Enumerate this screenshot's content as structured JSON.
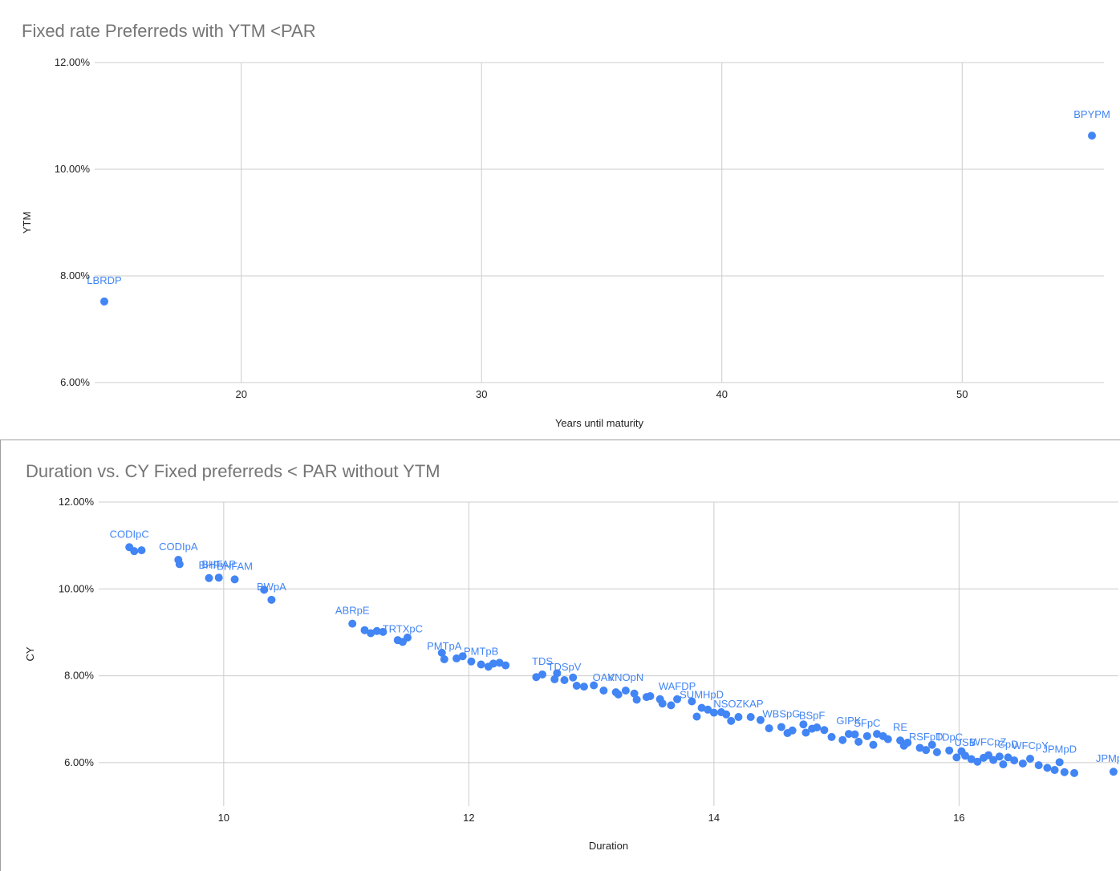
{
  "chart_data": [
    {
      "type": "scatter",
      "title": "Fixed rate Preferreds with YTM <PAR",
      "xlabel": "Years until maturity",
      "ylabel": "YTM",
      "xlim": [
        13.9,
        55.9
      ],
      "ylim": [
        0.06,
        0.12
      ],
      "x_ticks": [
        20,
        30,
        40,
        50
      ],
      "x_tick_labels": [
        "20",
        "30",
        "40",
        "50"
      ],
      "y_ticks": [
        0.06,
        0.08,
        0.1,
        0.12
      ],
      "y_tick_labels": [
        "6.00%",
        "8.00%",
        "10.00%",
        "12.00%"
      ],
      "grid": true,
      "color": "#4285f4",
      "points": [
        {
          "x": 14.3,
          "y": 0.0752,
          "label": "LBRDP"
        },
        {
          "x": 55.4,
          "y": 0.1063,
          "label": "BPYPM"
        }
      ]
    },
    {
      "type": "scatter",
      "title": "Duration vs. CY Fixed preferreds < PAR without YTM",
      "xlabel": "Duration",
      "ylabel": "CY",
      "xlim": [
        8.98,
        17.3
      ],
      "ylim": [
        0.05,
        0.12
      ],
      "x_ticks": [
        10,
        12,
        14,
        16
      ],
      "x_tick_labels": [
        "10",
        "12",
        "14",
        "16"
      ],
      "y_ticks": [
        0.06,
        0.08,
        0.1,
        0.12
      ],
      "y_tick_labels": [
        "6.00%",
        "8.00%",
        "10.00%",
        "12.00%"
      ],
      "grid": true,
      "color": "#4285f4",
      "points": [
        {
          "x": 9.23,
          "y": 0.1096,
          "label": "CODIpC"
        },
        {
          "x": 9.27,
          "y": 0.1087,
          "label": ""
        },
        {
          "x": 9.33,
          "y": 0.1089,
          "label": ""
        },
        {
          "x": 9.63,
          "y": 0.1067,
          "label": "CODIpA"
        },
        {
          "x": 9.64,
          "y": 0.1057,
          "label": ""
        },
        {
          "x": 9.88,
          "y": 0.1025,
          "label": "BHF"
        },
        {
          "x": 9.96,
          "y": 0.1026,
          "label": "BHFAP"
        },
        {
          "x": 10.09,
          "y": 0.1022,
          "label": "BHFAM"
        },
        {
          "x": 10.33,
          "y": 0.0998,
          "label": ""
        },
        {
          "x": 10.39,
          "y": 0.0975,
          "label": "BWpA"
        },
        {
          "x": 11.05,
          "y": 0.092,
          "label": "ABRpE"
        },
        {
          "x": 11.15,
          "y": 0.0905,
          "label": ""
        },
        {
          "x": 11.2,
          "y": 0.0898,
          "label": ""
        },
        {
          "x": 11.25,
          "y": 0.0903,
          "label": ""
        },
        {
          "x": 11.3,
          "y": 0.0901,
          "label": ""
        },
        {
          "x": 11.42,
          "y": 0.0882,
          "label": ""
        },
        {
          "x": 11.46,
          "y": 0.0878,
          "label": "TRTXpC"
        },
        {
          "x": 11.5,
          "y": 0.0888,
          "label": ""
        },
        {
          "x": 11.78,
          "y": 0.0853,
          "label": ""
        },
        {
          "x": 11.8,
          "y": 0.0838,
          "label": "PMTpA"
        },
        {
          "x": 11.9,
          "y": 0.084,
          "label": ""
        },
        {
          "x": 11.95,
          "y": 0.0845,
          "label": ""
        },
        {
          "x": 12.02,
          "y": 0.0833,
          "label": ""
        },
        {
          "x": 12.1,
          "y": 0.0826,
          "label": "PMTpB"
        },
        {
          "x": 12.16,
          "y": 0.0821,
          "label": ""
        },
        {
          "x": 12.2,
          "y": 0.0828,
          "label": ""
        },
        {
          "x": 12.25,
          "y": 0.083,
          "label": ""
        },
        {
          "x": 12.3,
          "y": 0.0824,
          "label": ""
        },
        {
          "x": 12.55,
          "y": 0.0797,
          "label": ""
        },
        {
          "x": 12.6,
          "y": 0.0803,
          "label": "TDS"
        },
        {
          "x": 12.7,
          "y": 0.0792,
          "label": ""
        },
        {
          "x": 12.72,
          "y": 0.0806,
          "label": ""
        },
        {
          "x": 12.78,
          "y": 0.079,
          "label": "TDSpV"
        },
        {
          "x": 12.85,
          "y": 0.0796,
          "label": ""
        },
        {
          "x": 12.88,
          "y": 0.0777,
          "label": ""
        },
        {
          "x": 12.94,
          "y": 0.0775,
          "label": ""
        },
        {
          "x": 13.02,
          "y": 0.0778,
          "label": ""
        },
        {
          "x": 13.1,
          "y": 0.0766,
          "label": "OAK"
        },
        {
          "x": 13.2,
          "y": 0.0762,
          "label": ""
        },
        {
          "x": 13.22,
          "y": 0.0757,
          "label": ""
        },
        {
          "x": 13.28,
          "y": 0.0766,
          "label": "VNOpN"
        },
        {
          "x": 13.35,
          "y": 0.0759,
          "label": ""
        },
        {
          "x": 13.37,
          "y": 0.0745,
          "label": ""
        },
        {
          "x": 13.45,
          "y": 0.0751,
          "label": ""
        },
        {
          "x": 13.48,
          "y": 0.0753,
          "label": ""
        },
        {
          "x": 13.56,
          "y": 0.0746,
          "label": ""
        },
        {
          "x": 13.58,
          "y": 0.0736,
          "label": ""
        },
        {
          "x": 13.65,
          "y": 0.0732,
          "label": ""
        },
        {
          "x": 13.7,
          "y": 0.0746,
          "label": "WAFDP"
        },
        {
          "x": 13.82,
          "y": 0.0741,
          "label": ""
        },
        {
          "x": 13.86,
          "y": 0.0706,
          "label": ""
        },
        {
          "x": 13.9,
          "y": 0.0726,
          "label": "SUMHpD"
        },
        {
          "x": 13.95,
          "y": 0.0722,
          "label": ""
        },
        {
          "x": 14.0,
          "y": 0.0715,
          "label": ""
        },
        {
          "x": 14.06,
          "y": 0.0716,
          "label": ""
        },
        {
          "x": 14.1,
          "y": 0.0711,
          "label": ""
        },
        {
          "x": 14.14,
          "y": 0.0696,
          "label": ""
        },
        {
          "x": 14.2,
          "y": 0.0705,
          "label": "NSOZKAP"
        },
        {
          "x": 14.3,
          "y": 0.0705,
          "label": ""
        },
        {
          "x": 14.38,
          "y": 0.0698,
          "label": ""
        },
        {
          "x": 14.45,
          "y": 0.0679,
          "label": ""
        },
        {
          "x": 14.55,
          "y": 0.0682,
          "label": "WBSpG"
        },
        {
          "x": 14.6,
          "y": 0.0668,
          "label": ""
        },
        {
          "x": 14.64,
          "y": 0.0674,
          "label": ""
        },
        {
          "x": 14.73,
          "y": 0.0688,
          "label": ""
        },
        {
          "x": 14.75,
          "y": 0.0669,
          "label": ""
        },
        {
          "x": 14.8,
          "y": 0.0678,
          "label": "BSpF"
        },
        {
          "x": 14.84,
          "y": 0.0681,
          "label": ""
        },
        {
          "x": 14.9,
          "y": 0.0675,
          "label": ""
        },
        {
          "x": 14.96,
          "y": 0.0659,
          "label": ""
        },
        {
          "x": 15.05,
          "y": 0.0652,
          "label": ""
        },
        {
          "x": 15.1,
          "y": 0.0666,
          "label": "GIPK"
        },
        {
          "x": 15.15,
          "y": 0.0665,
          "label": ""
        },
        {
          "x": 15.18,
          "y": 0.0648,
          "label": ""
        },
        {
          "x": 15.25,
          "y": 0.0661,
          "label": "SFpC"
        },
        {
          "x": 15.3,
          "y": 0.0641,
          "label": ""
        },
        {
          "x": 15.33,
          "y": 0.0666,
          "label": ""
        },
        {
          "x": 15.38,
          "y": 0.0661,
          "label": ""
        },
        {
          "x": 15.42,
          "y": 0.0654,
          "label": ""
        },
        {
          "x": 15.52,
          "y": 0.0651,
          "label": "RE"
        },
        {
          "x": 15.55,
          "y": 0.0639,
          "label": ""
        },
        {
          "x": 15.58,
          "y": 0.0646,
          "label": ""
        },
        {
          "x": 15.68,
          "y": 0.0634,
          "label": ""
        },
        {
          "x": 15.73,
          "y": 0.0629,
          "label": "RSFpD"
        },
        {
          "x": 15.78,
          "y": 0.0641,
          "label": ""
        },
        {
          "x": 15.82,
          "y": 0.0624,
          "label": ""
        },
        {
          "x": 15.92,
          "y": 0.0628,
          "label": "TDpC"
        },
        {
          "x": 15.98,
          "y": 0.0612,
          "label": ""
        },
        {
          "x": 16.02,
          "y": 0.0626,
          "label": ""
        },
        {
          "x": 16.05,
          "y": 0.0616,
          "label": "USB"
        },
        {
          "x": 16.1,
          "y": 0.0608,
          "label": ""
        },
        {
          "x": 16.15,
          "y": 0.0602,
          "label": ""
        },
        {
          "x": 16.2,
          "y": 0.0611,
          "label": ""
        },
        {
          "x": 16.24,
          "y": 0.0617,
          "label": "WFCpZ"
        },
        {
          "x": 16.28,
          "y": 0.0606,
          "label": ""
        },
        {
          "x": 16.33,
          "y": 0.0614,
          "label": ""
        },
        {
          "x": 16.36,
          "y": 0.0596,
          "label": ""
        },
        {
          "x": 16.4,
          "y": 0.0612,
          "label": "CpD"
        },
        {
          "x": 16.45,
          "y": 0.0605,
          "label": ""
        },
        {
          "x": 16.52,
          "y": 0.0598,
          "label": ""
        },
        {
          "x": 16.58,
          "y": 0.0609,
          "label": "WFCpY"
        },
        {
          "x": 16.65,
          "y": 0.0594,
          "label": ""
        },
        {
          "x": 16.72,
          "y": 0.0588,
          "label": ""
        },
        {
          "x": 16.78,
          "y": 0.0583,
          "label": ""
        },
        {
          "x": 16.82,
          "y": 0.0601,
          "label": "JPMpD"
        },
        {
          "x": 16.86,
          "y": 0.0578,
          "label": ""
        },
        {
          "x": 16.94,
          "y": 0.0576,
          "label": ""
        },
        {
          "x": 17.26,
          "y": 0.0579,
          "label": "JPMpM"
        }
      ]
    }
  ]
}
